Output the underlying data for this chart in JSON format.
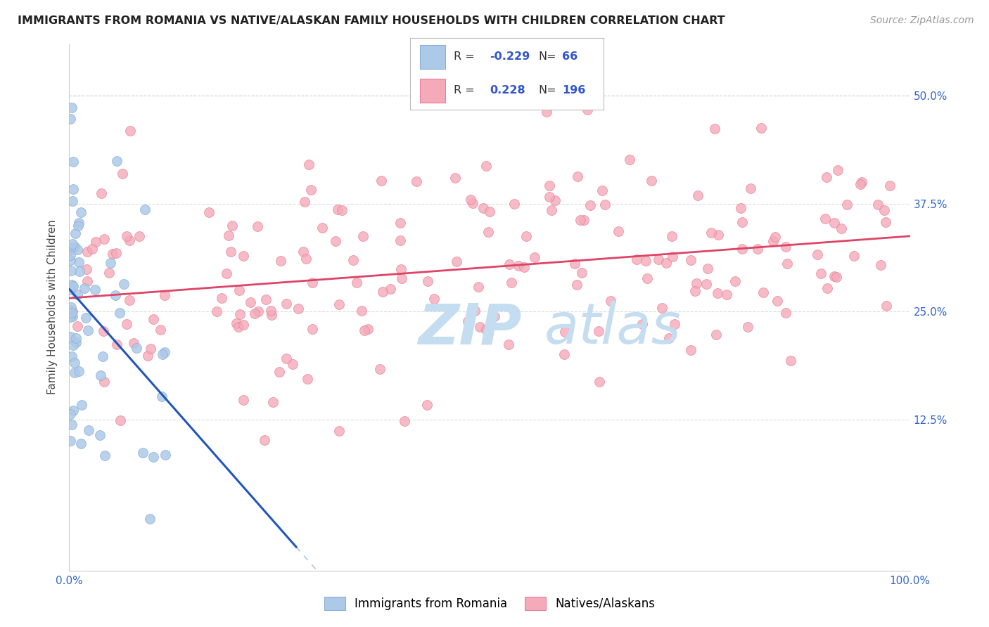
{
  "title": "IMMIGRANTS FROM ROMANIA VS NATIVE/ALASKAN FAMILY HOUSEHOLDS WITH CHILDREN CORRELATION CHART",
  "source": "Source: ZipAtlas.com",
  "ylabel": "Family Households with Children",
  "legend": {
    "blue_R": "-0.229",
    "blue_N": "66",
    "pink_R": "0.228",
    "pink_N": "196"
  },
  "blue_color": "#adc9e8",
  "pink_color": "#f4aab8",
  "blue_edge": "#88b0d8",
  "pink_edge": "#e88098",
  "trend_blue": "#2255bb",
  "trend_pink": "#dd4466",
  "watermark_color": "#c5ddf0",
  "grid_color": "#cccccc",
  "background_color": "#ffffff",
  "xlim": [
    0.0,
    1.0
  ],
  "ylim": [
    -0.05,
    0.56
  ],
  "blue_seed": 77,
  "pink_seed": 55
}
